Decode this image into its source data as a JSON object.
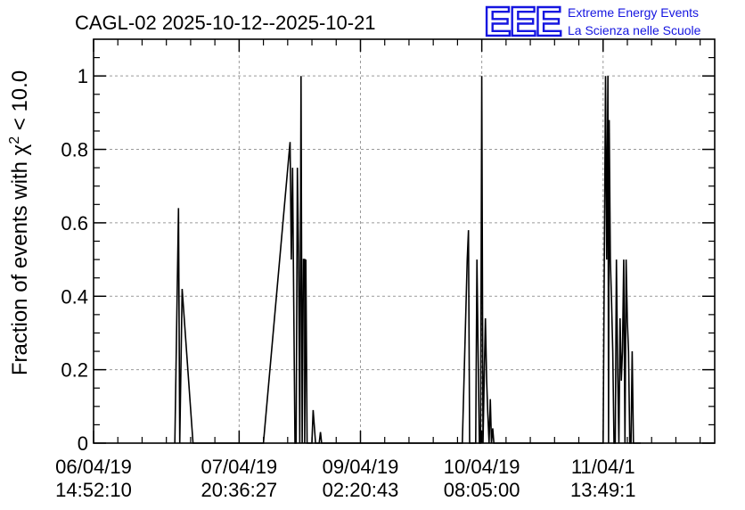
{
  "logo": {
    "mark": "EEE",
    "line1": "Extreme Energy Events",
    "line2": "La Scienza nelle Scuole",
    "color": "#1515e0"
  },
  "chart_data": {
    "type": "line",
    "title": "CAGL-02 2025-10-12--2025-10-21",
    "ylabel_prefix": "Fraction of events with χ",
    "ylabel_sup": "2",
    "ylabel_suffix": " < 10.0",
    "xlabel": "",
    "xlim": [
      0,
      5.12
    ],
    "ylim": [
      0,
      1.1
    ],
    "grid": true,
    "yticks": [
      0,
      0.2,
      0.4,
      0.6,
      0.8,
      1
    ],
    "ytick_labels": [
      "0",
      "0.2",
      "0.4",
      "0.6",
      "0.8",
      "1"
    ],
    "xticks": [
      0,
      1.2,
      2.2,
      3.2,
      4.2
    ],
    "xtick_labels": [
      [
        "06/04/19",
        "14:52:10"
      ],
      [
        "07/04/19",
        "20:36:27"
      ],
      [
        "09/04/19",
        "02:20:43"
      ],
      [
        "10/04/19",
        "08:05:00"
      ],
      [
        "11/04/1",
        "13:49:1"
      ]
    ],
    "series": [
      {
        "name": "fraction",
        "color": "#000000",
        "x": [
          0.67,
          0.7,
          0.71,
          0.71,
          0.73,
          0.82,
          0.88,
          1.4,
          1.62,
          1.63,
          1.64,
          1.66,
          1.67,
          1.68,
          1.69,
          1.7,
          1.71,
          1.72,
          1.73,
          1.74,
          1.74,
          1.75,
          1.76,
          1.77,
          1.78,
          1.79,
          1.8,
          1.81,
          1.83,
          1.84,
          1.85,
          1.86,
          1.87,
          1.88,
          3.04,
          3.08,
          3.09,
          3.1,
          3.12,
          3.14,
          3.15,
          3.16,
          3.17,
          3.18,
          3.19,
          3.2,
          3.21,
          3.22,
          3.23,
          3.24,
          3.25,
          3.26,
          3.27,
          3.28,
          3.29,
          3.3,
          3.31,
          3.32,
          3.33,
          4.2,
          4.22,
          4.23,
          4.24,
          4.245,
          4.25,
          4.26,
          4.27,
          4.28,
          4.29,
          4.3,
          4.31,
          4.32,
          4.33,
          4.34,
          4.35,
          4.36,
          4.37,
          4.38,
          4.39,
          4.4,
          4.41,
          4.42,
          4.43,
          4.44,
          4.45,
          4.46,
          4.47,
          4.48,
          4.49,
          4.5,
          4.51
        ],
        "y": [
          0,
          0.64,
          0,
          0,
          0.42,
          0,
          0,
          0,
          0.82,
          0.5,
          0.75,
          0,
          0,
          0.75,
          0.5,
          0,
          1.0,
          0,
          0.5,
          0.5,
          0,
          0.5,
          0,
          0,
          0,
          0,
          0,
          0.09,
          0,
          0,
          0,
          0,
          0.03,
          0,
          0,
          0.5,
          0.58,
          0,
          0,
          0,
          0,
          0.5,
          0.25,
          0,
          0,
          1.0,
          0,
          0.17,
          0.34,
          0.17,
          0.08,
          0,
          0.12,
          0,
          0.04,
          0,
          0,
          0,
          0,
          0,
          1.0,
          0.5,
          1.0,
          0,
          0.88,
          0.5,
          0.38,
          0.25,
          0,
          0,
          0.5,
          0.2,
          0,
          0.34,
          0.17,
          0.25,
          0.5,
          0,
          0.5,
          0.33,
          0.25,
          0,
          0,
          0.25,
          0,
          0,
          0,
          0,
          0,
          0,
          0
        ]
      }
    ]
  }
}
